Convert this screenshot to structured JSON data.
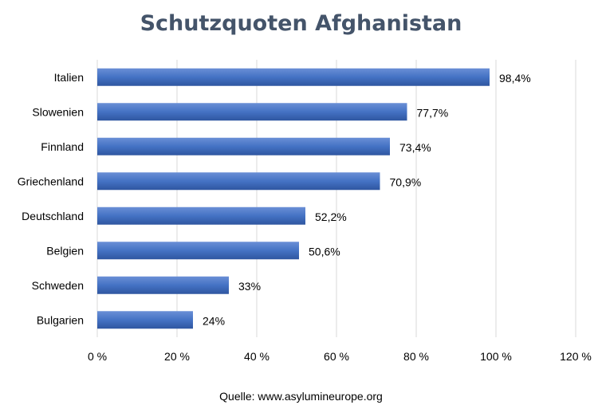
{
  "chart_data": {
    "type": "bar",
    "orientation": "horizontal",
    "title": "Schutzquoten Afghanistan",
    "categories": [
      "Italien",
      "Slowenien",
      "Finnland",
      "Griechenland",
      "Deutschland",
      "Belgien",
      "Schweden",
      "Bulgarien"
    ],
    "values": [
      98.4,
      77.7,
      73.4,
      70.9,
      52.2,
      50.6,
      33,
      24
    ],
    "data_labels": [
      "98,4%",
      "77,7%",
      "73,4%",
      "70,9%",
      "52,2%",
      "50,6%",
      "33%",
      "24%"
    ],
    "xlim": [
      0,
      120
    ],
    "x_ticks": [
      0,
      20,
      40,
      60,
      80,
      100,
      120
    ],
    "x_tick_labels": [
      "0 %",
      "20 %",
      "40 %",
      "60 %",
      "80 %",
      "100 %",
      "120 %"
    ],
    "grid": true,
    "bar_color": "#4472c4",
    "source": "Quelle: www.asylumineurope.org"
  }
}
